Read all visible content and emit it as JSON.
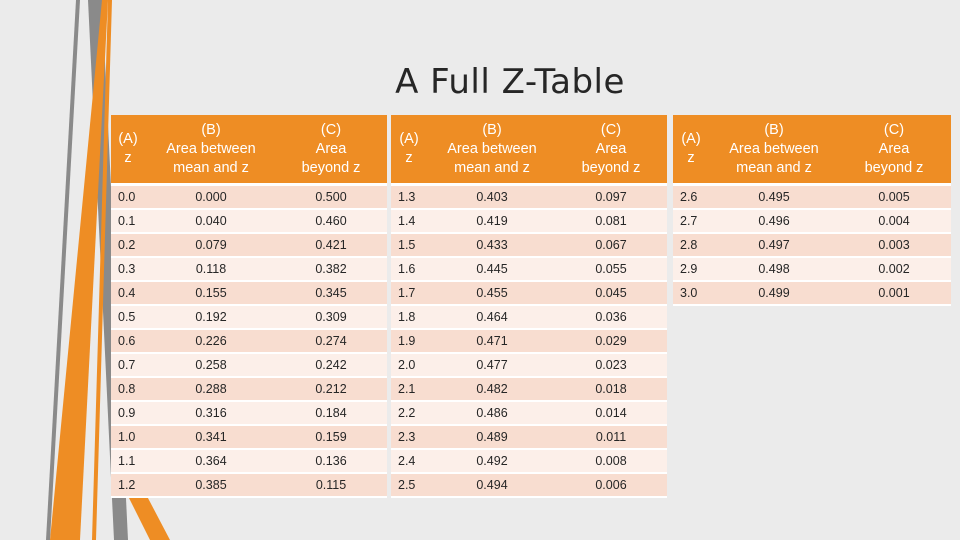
{
  "title": "A Full Z-Table",
  "header_lines": {
    "a": [
      "(A)",
      "z"
    ],
    "b": [
      "(B)",
      "Area between",
      "mean and z"
    ],
    "c": [
      "(C)",
      "Area",
      "beyond z"
    ]
  },
  "tables": [
    {
      "rows": [
        [
          "0.0",
          "0.000",
          "0.500"
        ],
        [
          "0.1",
          "0.040",
          "0.460"
        ],
        [
          "0.2",
          "0.079",
          "0.421"
        ],
        [
          "0.3",
          "0.118",
          "0.382"
        ],
        [
          "0.4",
          "0.155",
          "0.345"
        ],
        [
          "0.5",
          "0.192",
          "0.309"
        ],
        [
          "0.6",
          "0.226",
          "0.274"
        ],
        [
          "0.7",
          "0.258",
          "0.242"
        ],
        [
          "0.8",
          "0.288",
          "0.212"
        ],
        [
          "0.9",
          "0.316",
          "0.184"
        ],
        [
          "1.0",
          "0.341",
          "0.159"
        ],
        [
          "1.1",
          "0.364",
          "0.136"
        ],
        [
          "1.2",
          "0.385",
          "0.115"
        ]
      ]
    },
    {
      "rows": [
        [
          "1.3",
          "0.403",
          "0.097"
        ],
        [
          "1.4",
          "0.419",
          "0.081"
        ],
        [
          "1.5",
          "0.433",
          "0.067"
        ],
        [
          "1.6",
          "0.445",
          "0.055"
        ],
        [
          "1.7",
          "0.455",
          "0.045"
        ],
        [
          "1.8",
          "0.464",
          "0.036"
        ],
        [
          "1.9",
          "0.471",
          "0.029"
        ],
        [
          "2.0",
          "0.477",
          "0.023"
        ],
        [
          "2.1",
          "0.482",
          "0.018"
        ],
        [
          "2.2",
          "0.486",
          "0.014"
        ],
        [
          "2.3",
          "0.489",
          "0.011"
        ],
        [
          "2.4",
          "0.492",
          "0.008"
        ],
        [
          "2.5",
          "0.494",
          "0.006"
        ]
      ]
    },
    {
      "rows": [
        [
          "2.6",
          "0.495",
          "0.005"
        ],
        [
          "2.7",
          "0.496",
          "0.004"
        ],
        [
          "2.8",
          "0.497",
          "0.003"
        ],
        [
          "2.9",
          "0.498",
          "0.002"
        ],
        [
          "3.0",
          "0.499",
          "0.001"
        ]
      ]
    }
  ],
  "colors": {
    "accent": "#ee8d24",
    "stripe_dark": "#8a8a8a",
    "row_odd": "#f8ddd0",
    "row_even": "#fcefe9",
    "background": "#ebebeb"
  }
}
